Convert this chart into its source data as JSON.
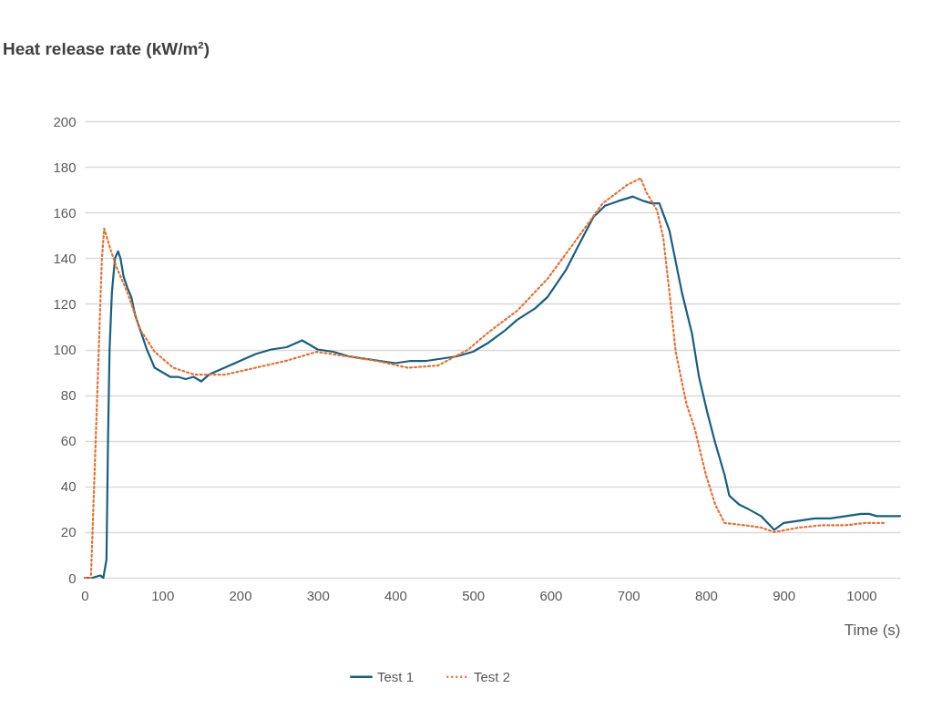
{
  "chart_data": {
    "type": "line",
    "title": "Heat release rate (kW/m²)",
    "xlabel": "Time (s)",
    "xlim": [
      0,
      1050
    ],
    "xticks": [
      0,
      100,
      200,
      300,
      400,
      500,
      600,
      700,
      800,
      900,
      1000
    ],
    "ylim": [
      0,
      200
    ],
    "yticks": [
      0,
      20,
      40,
      60,
      80,
      100,
      120,
      140,
      160,
      180,
      200
    ],
    "grid": "y",
    "legend": "bottom",
    "marker": "none",
    "series": [
      {
        "name": "Test 1",
        "color": "#156082",
        "line_style": "solid",
        "x": [
          0,
          10,
          20,
          24,
          28,
          30,
          32,
          35,
          39,
          43,
          46,
          50,
          55,
          60,
          65,
          70,
          80,
          90,
          100,
          110,
          120,
          130,
          140,
          150,
          160,
          180,
          200,
          220,
          240,
          260,
          280,
          290,
          300,
          320,
          340,
          360,
          380,
          400,
          420,
          440,
          460,
          479,
          500,
          520,
          540,
          557,
          580,
          596,
          620,
          635,
          655,
          670,
          687,
          706,
          720,
          730,
          740,
          753,
          769,
          782,
          791,
          802,
          812,
          824,
          830,
          843,
          855,
          871,
          888,
          900,
          920,
          940,
          960,
          980,
          1000,
          1010,
          1020,
          1050
        ],
        "values": [
          0,
          0,
          1,
          0,
          8,
          60,
          100,
          125,
          140,
          143,
          140,
          132,
          127,
          123,
          115,
          110,
          100,
          92,
          90,
          88,
          88,
          87,
          88,
          86,
          89,
          92,
          95,
          98,
          100,
          101,
          104,
          102,
          100,
          99,
          97,
          96,
          95,
          94,
          95,
          95,
          96,
          97,
          99,
          103,
          108,
          113,
          118,
          123,
          135,
          145,
          158,
          163,
          165,
          167,
          165,
          164,
          164,
          152,
          125,
          107,
          88,
          72,
          59,
          45,
          36,
          32,
          30,
          27,
          21,
          24,
          25,
          26,
          26,
          27,
          28,
          28,
          27,
          27
        ]
      },
      {
        "name": "Test 2",
        "color": "#e97132",
        "line_style": "dotted",
        "x": [
          0,
          8,
          14,
          18,
          22,
          25,
          34,
          41,
          55,
          71,
          90,
          114,
          141,
          181,
          220,
          259,
          299,
          338,
          376,
          416,
          455,
          494,
          518,
          557,
          596,
          635,
          667,
          698,
          716,
          723,
          737,
          745,
          753,
          761,
          775,
          785,
          800,
          812,
          824,
          850,
          871,
          888,
          920,
          949,
          980,
          1004,
          1032
        ],
        "values": [
          0,
          0,
          59,
          99,
          139,
          153,
          143,
          136,
          125,
          109,
          99,
          92,
          89,
          89,
          92,
          95,
          99,
          97,
          95,
          92,
          93,
          100,
          107,
          117,
          131,
          149,
          164,
          172,
          175,
          169,
          161,
          149,
          125,
          99,
          76,
          66,
          45,
          32,
          24,
          23,
          22,
          20,
          22,
          23,
          23,
          24,
          24
        ]
      }
    ]
  }
}
